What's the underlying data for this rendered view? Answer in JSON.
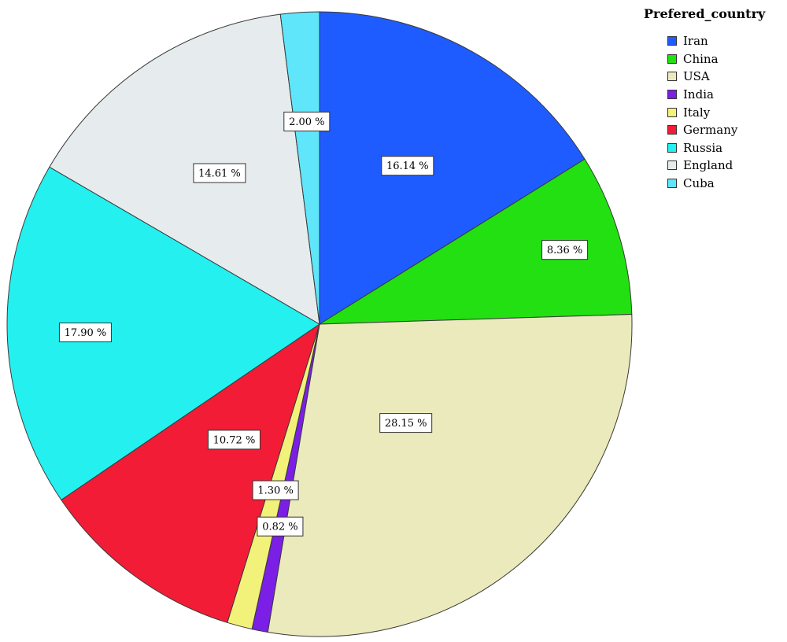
{
  "chart_data": {
    "type": "pie",
    "legend_title": "Prefered_country",
    "legend_position": "top-right",
    "start_angle_deg": 0,
    "direction": "clockwise",
    "slices": [
      {
        "name": "Iran",
        "value": 16.14,
        "label": "16.14 %",
        "color": "#1f5cff"
      },
      {
        "name": "China",
        "value": 8.36,
        "label": "8.36 %",
        "color": "#22e011"
      },
      {
        "name": "USA",
        "value": 28.15,
        "label": "28.15 %",
        "color": "#ebeabc"
      },
      {
        "name": "India",
        "value": 0.82,
        "label": "0.82 %",
        "color": "#7b1fe6"
      },
      {
        "name": "Italy",
        "value": 1.3,
        "label": "1.30 %",
        "color": "#f2f27a"
      },
      {
        "name": "Germany",
        "value": 10.72,
        "label": "10.72 %",
        "color": "#f21c36"
      },
      {
        "name": "Russia",
        "value": 17.9,
        "label": "17.90 %",
        "color": "#24f0f0"
      },
      {
        "name": "England",
        "value": 14.61,
        "label": "14.61 %",
        "color": "#e6ebee"
      },
      {
        "name": "Cuba",
        "value": 2.0,
        "label": "2.00 %",
        "color": "#5fe6fa"
      }
    ]
  }
}
